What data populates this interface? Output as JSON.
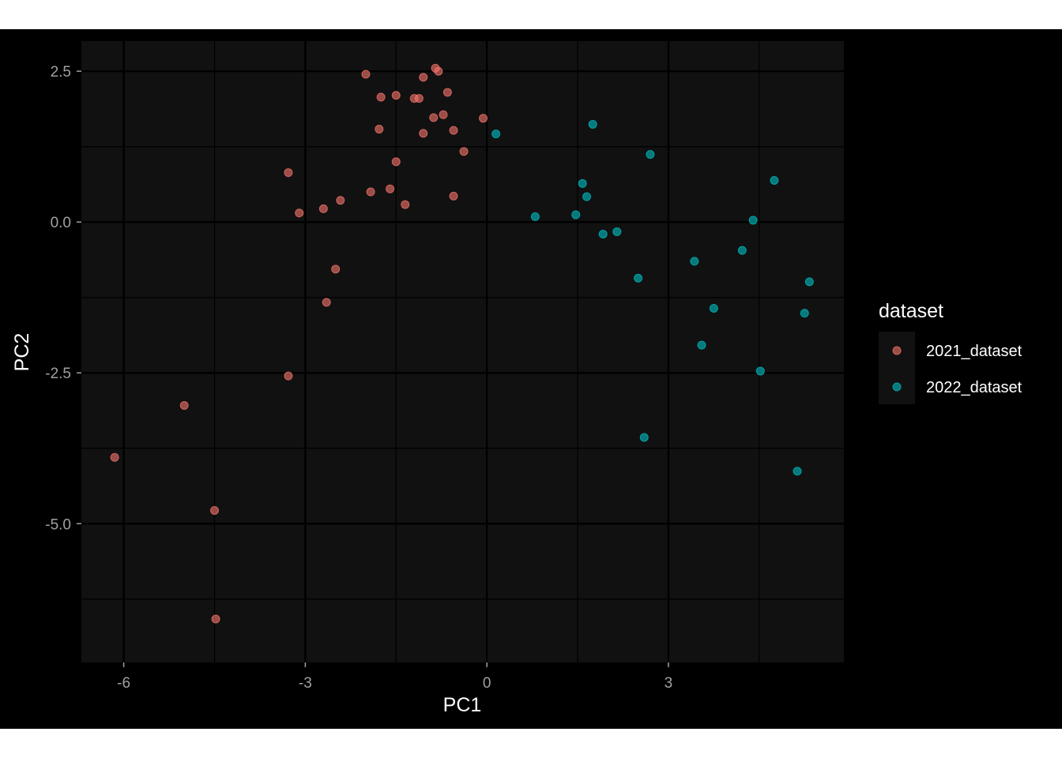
{
  "chart_data": {
    "type": "scatter",
    "title": "",
    "xlabel": "PC1",
    "ylabel": "PC2",
    "xlim": [
      -6.7,
      5.9
    ],
    "ylim": [
      -7.3,
      3.0
    ],
    "x_ticks": [
      -6,
      -3,
      0,
      3
    ],
    "x_tick_labels": [
      "-6",
      "-3",
      "0",
      "3"
    ],
    "y_ticks": [
      2.5,
      0.0,
      -2.5,
      -5.0
    ],
    "y_tick_labels": [
      "2.5",
      "0.0",
      "-2.5",
      "-5.0"
    ],
    "grid": true,
    "background": "#111111",
    "legend": {
      "title": "dataset",
      "position": "right",
      "entries": [
        "2021_dataset",
        "2022_dataset"
      ]
    },
    "series": [
      {
        "name": "2021_dataset",
        "color": "#F8766D",
        "points": [
          [
            -0.85,
            2.55
          ],
          [
            -0.8,
            2.5
          ],
          [
            -2.0,
            2.45
          ],
          [
            -1.05,
            2.4
          ],
          [
            -0.65,
            2.15
          ],
          [
            -1.5,
            2.1
          ],
          [
            -1.75,
            2.07
          ],
          [
            -1.2,
            2.05
          ],
          [
            -1.12,
            2.05
          ],
          [
            -0.72,
            1.78
          ],
          [
            -0.88,
            1.73
          ],
          [
            -0.06,
            1.72
          ],
          [
            -1.78,
            1.54
          ],
          [
            -0.55,
            1.52
          ],
          [
            -1.05,
            1.47
          ],
          [
            -0.38,
            1.17
          ],
          [
            -1.5,
            1.0
          ],
          [
            -3.28,
            0.82
          ],
          [
            -1.6,
            0.55
          ],
          [
            -1.92,
            0.5
          ],
          [
            -0.55,
            0.43
          ],
          [
            -2.42,
            0.36
          ],
          [
            -1.35,
            0.29
          ],
          [
            -2.7,
            0.22
          ],
          [
            -3.1,
            0.15
          ],
          [
            -2.5,
            -0.78
          ],
          [
            -2.65,
            -1.33
          ],
          [
            -3.28,
            -2.55
          ],
          [
            -5.0,
            -3.04
          ],
          [
            -6.15,
            -3.9
          ],
          [
            -4.5,
            -4.78
          ],
          [
            -4.48,
            -6.58
          ]
        ]
      },
      {
        "name": "2022_dataset",
        "color": "#00BFC4",
        "points": [
          [
            0.15,
            1.46
          ],
          [
            1.75,
            1.62
          ],
          [
            2.7,
            1.12
          ],
          [
            4.75,
            0.69
          ],
          [
            1.58,
            0.64
          ],
          [
            1.65,
            0.42
          ],
          [
            0.8,
            0.09
          ],
          [
            1.47,
            0.12
          ],
          [
            4.4,
            0.03
          ],
          [
            2.15,
            -0.16
          ],
          [
            1.92,
            -0.2
          ],
          [
            3.43,
            -0.65
          ],
          [
            4.22,
            -0.47
          ],
          [
            2.5,
            -0.93
          ],
          [
            5.33,
            -0.99
          ],
          [
            3.75,
            -1.43
          ],
          [
            5.25,
            -1.51
          ],
          [
            3.55,
            -2.04
          ],
          [
            4.52,
            -2.47
          ],
          [
            2.6,
            -3.57
          ],
          [
            5.13,
            -4.13
          ]
        ]
      }
    ]
  }
}
